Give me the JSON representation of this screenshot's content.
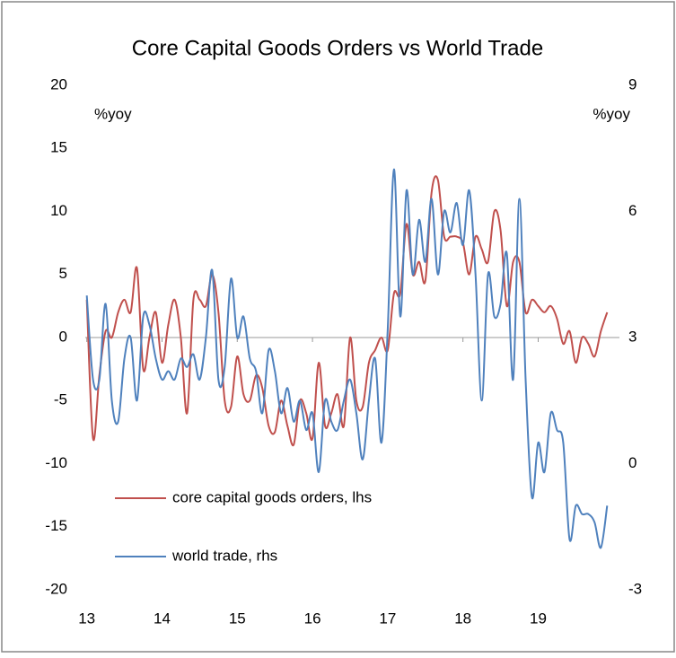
{
  "chart_data": {
    "type": "line",
    "title": "Core Capital Goods Orders vs World Trade",
    "ylabel": "%yoy",
    "y2label": "%yoy",
    "x": [
      13,
      13.083,
      13.167,
      13.25,
      13.333,
      13.417,
      13.5,
      13.583,
      13.667,
      13.75,
      13.833,
      13.917,
      14,
      14.083,
      14.167,
      14.25,
      14.333,
      14.417,
      14.5,
      14.583,
      14.667,
      14.75,
      14.833,
      14.917,
      15,
      15.083,
      15.167,
      15.25,
      15.333,
      15.417,
      15.5,
      15.583,
      15.667,
      15.75,
      15.833,
      15.917,
      16,
      16.083,
      16.167,
      16.25,
      16.333,
      16.417,
      16.5,
      16.583,
      16.667,
      16.75,
      16.833,
      16.917,
      17,
      17.083,
      17.167,
      17.25,
      17.333,
      17.417,
      17.5,
      17.583,
      17.667,
      17.75,
      17.833,
      17.917,
      18,
      18.083,
      18.167,
      18.25,
      18.333,
      18.417,
      18.5,
      18.583,
      18.667,
      18.75,
      18.833,
      18.917,
      19,
      19.083,
      19.167,
      19.25,
      19.333,
      19.417,
      19.5,
      19.583,
      19.667,
      19.75,
      19.833,
      19.917
    ],
    "series": [
      {
        "name": "core capital goods orders, lhs",
        "color": "#c0504d",
        "axis": "y",
        "values": [
          3,
          -8,
          -3,
          0.5,
          0,
          2,
          3,
          2,
          5.5,
          -2.5,
          0,
          2,
          -2,
          1,
          3,
          0,
          -6,
          3,
          3,
          2.5,
          5,
          2,
          -5,
          -5.5,
          -1.5,
          -4.5,
          -5,
          -3,
          -4,
          -7,
          -7.5,
          -5,
          -7,
          -8.5,
          -5,
          -6,
          -8,
          -2,
          -7,
          -6,
          -4.5,
          -7,
          0,
          -5,
          -5.5,
          -2,
          -1,
          0,
          -1,
          3.5,
          3.5,
          9,
          5,
          6,
          4.5,
          11.5,
          12.5,
          8,
          8,
          8,
          7.5,
          5,
          8,
          7,
          6,
          10,
          8.5,
          2.5,
          6,
          6,
          2,
          3,
          2.5,
          2,
          2.5,
          1.5,
          -0.5,
          0.5,
          -2,
          0,
          -0.5,
          -1.5,
          0.5,
          2
        ]
      },
      {
        "name": "world trade, rhs",
        "color": "#4f81bd",
        "axis": "y2",
        "values": [
          4,
          2,
          2,
          3.8,
          1.5,
          1,
          2.5,
          3,
          1.5,
          3.5,
          3.3,
          2.5,
          2,
          2.2,
          2,
          2.5,
          2.3,
          2.6,
          2,
          3,
          4.6,
          2,
          2.3,
          4.4,
          3,
          3.5,
          2.5,
          2.2,
          1.2,
          2.7,
          2.2,
          1.2,
          1.8,
          1,
          1.5,
          0.8,
          1.2,
          -0.2,
          1.5,
          1,
          0.8,
          1.5,
          2,
          1.2,
          0.1,
          1.5,
          2.5,
          0.5,
          3.2,
          7,
          3.5,
          6.5,
          4.5,
          5.8,
          4.8,
          6.3,
          4.5,
          6,
          5.5,
          6.2,
          5.2,
          6.5,
          4.5,
          1.5,
          4.5,
          3.5,
          3.8,
          5,
          2,
          6.3,
          2,
          -0.8,
          0.5,
          -0.2,
          1.2,
          0.8,
          0.5,
          -1.8,
          -1,
          -1.2,
          -1.2,
          -1.4,
          -2,
          -1
        ]
      }
    ],
    "xlim": [
      12.98,
      20.08
    ],
    "xticks": [
      13,
      14,
      15,
      16,
      17,
      18,
      19
    ],
    "ylim": [
      -20,
      20
    ],
    "yticks": [
      -20,
      -15,
      -10,
      -5,
      0,
      5,
      10,
      15,
      20
    ],
    "y2lim": [
      -3,
      9
    ],
    "y2ticks": [
      -3,
      0,
      3,
      6,
      9
    ],
    "zero_line": true,
    "legend": "bottom-left"
  }
}
